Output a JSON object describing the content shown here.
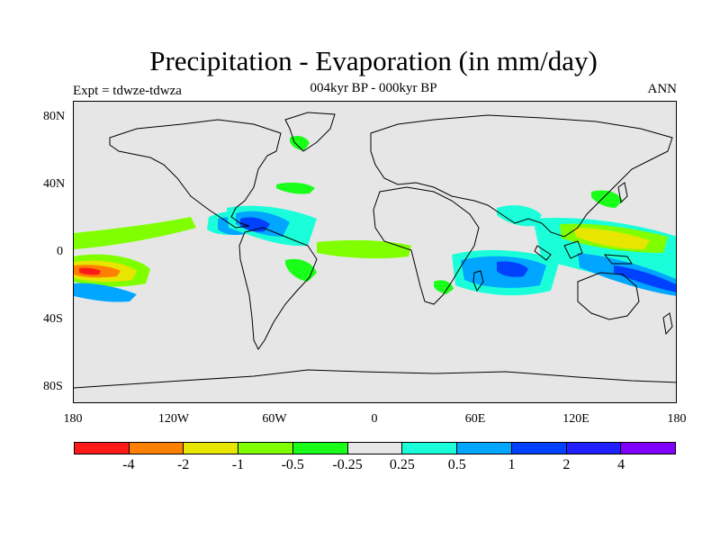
{
  "title": "Precipitation - Evaporation (in mm/day)",
  "subtitle": "004kyr BP - 000kyr BP",
  "left_label": "Expt = tdwze-tdwza",
  "right_label": "ANN",
  "map": {
    "lat_ticks": [
      "80N",
      "40N",
      "0",
      "40S",
      "80S"
    ],
    "lon_ticks": [
      "180",
      "120W",
      "60W",
      "0",
      "60E",
      "120E",
      "180"
    ],
    "background_color": "#e6e6e6"
  },
  "colorbar": {
    "colors": [
      "#ff1a1a",
      "#ff8000",
      "#e6e600",
      "#80ff00",
      "#1aff1a",
      "#e6e6e6",
      "#1affd9",
      "#00a6ff",
      "#0040ff",
      "#2020ff",
      "#8000ff"
    ],
    "labels": [
      "-4",
      "-2",
      "-1",
      "-0.5",
      "-0.25",
      "0.25",
      "0.5",
      "1",
      "2",
      "4"
    ]
  }
}
